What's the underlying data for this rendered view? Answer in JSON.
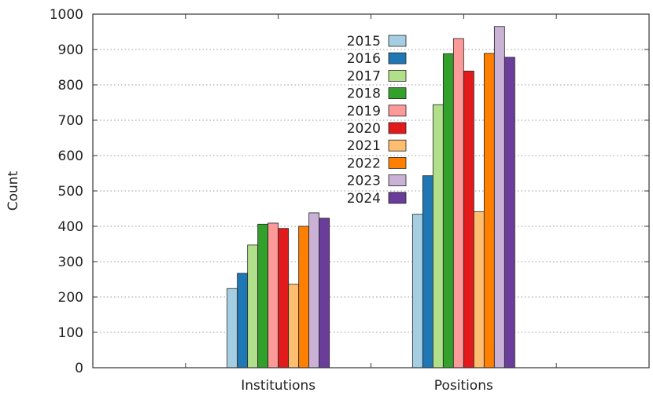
{
  "chart_data": {
    "type": "bar",
    "title": "",
    "xlabel": "",
    "ylabel": "Count",
    "ylim": [
      0,
      1000
    ],
    "yticks": [
      0,
      100,
      200,
      300,
      400,
      500,
      600,
      700,
      800,
      900,
      1000
    ],
    "categories": [
      "Institutions",
      "Positions"
    ],
    "grid": "horizontal dotted",
    "legend_position": "top-center",
    "series": [
      {
        "name": "2015",
        "color": "#a6cee3",
        "values": [
          224,
          434
        ]
      },
      {
        "name": "2016",
        "color": "#1f78b4",
        "values": [
          267,
          543
        ]
      },
      {
        "name": "2017",
        "color": "#b2df8a",
        "values": [
          347,
          744
        ]
      },
      {
        "name": "2018",
        "color": "#33a02c",
        "values": [
          406,
          888
        ]
      },
      {
        "name": "2019",
        "color": "#fb9a99",
        "values": [
          409,
          931
        ]
      },
      {
        "name": "2020",
        "color": "#e31a1c",
        "values": [
          394,
          839
        ]
      },
      {
        "name": "2021",
        "color": "#fdbf6f",
        "values": [
          236,
          441
        ]
      },
      {
        "name": "2022",
        "color": "#ff7f00",
        "values": [
          400,
          889
        ]
      },
      {
        "name": "2023",
        "color": "#cab2d6",
        "values": [
          438,
          965
        ]
      },
      {
        "name": "2024",
        "color": "#6a3d9a",
        "values": [
          423,
          878
        ]
      }
    ]
  }
}
